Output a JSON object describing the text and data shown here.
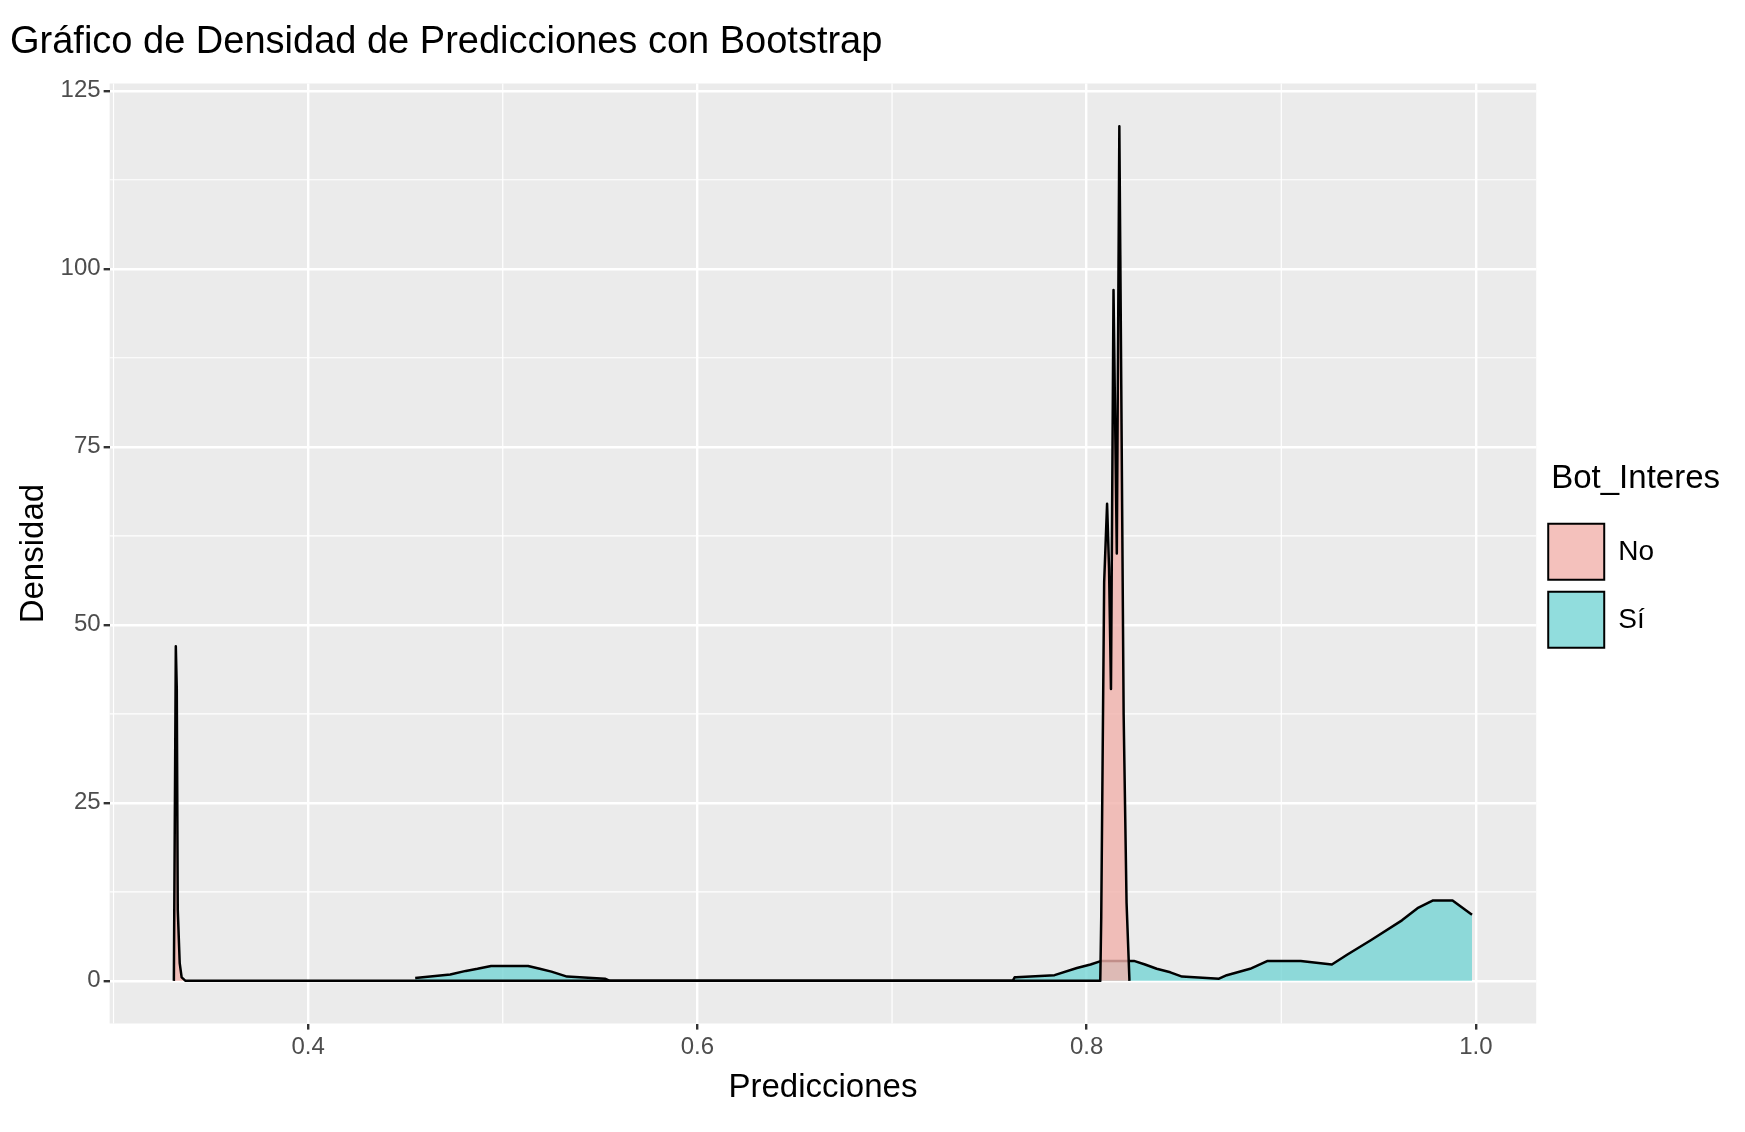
{
  "chart_data": {
    "type": "area",
    "title": "Gráfico de Densidad de Predicciones con Bootstrap",
    "xlabel": "Predicciones",
    "ylabel": "Densidad",
    "legend_title": "Bot_Interes",
    "series": [
      {
        "name": "No",
        "color": "#f1b1ab",
        "x": [
          0.331,
          0.332,
          0.3325,
          0.333,
          0.334,
          0.335,
          0.337,
          0.807,
          0.8075,
          0.809,
          0.8105,
          0.8115,
          0.8125,
          0.8138,
          0.8155,
          0.8168,
          0.8178,
          0.819,
          0.8205,
          0.822
        ],
        "values": [
          0,
          47,
          41,
          10,
          2.5,
          0.5,
          0,
          0,
          9,
          56,
          67,
          58,
          41,
          97,
          60,
          120,
          83,
          37.5,
          11,
          0
        ]
      },
      {
        "name": "Sí",
        "color": "#75d4d5",
        "x": [
          0.455,
          0.473,
          0.481,
          0.487,
          0.494,
          0.513,
          0.519,
          0.525,
          0.533,
          0.5525,
          0.555,
          0.762,
          0.763,
          0.7835,
          0.795,
          0.802,
          0.8076,
          0.8243,
          0.83,
          0.836,
          0.843,
          0.849,
          0.868,
          0.872,
          0.884,
          0.893,
          0.91,
          0.926,
          0.934,
          0.946,
          0.962,
          0.97,
          0.978,
          0.988,
          0.998
        ],
        "values": [
          0.4,
          0.9,
          1.4,
          1.7,
          2.1,
          2.1,
          1.7,
          1.3,
          0.6,
          0.3,
          0,
          0,
          0.5,
          0.8,
          1.8,
          2.3,
          2.8,
          2.8,
          2.3,
          1.7,
          1.2,
          0.6,
          0.3,
          0.8,
          1.7,
          2.8,
          2.8,
          2.3,
          3.7,
          5.7,
          8.5,
          10.2,
          11.3,
          11.3,
          9.3
        ]
      }
    ],
    "xlim": [
      0.298,
      1.031
    ],
    "xticks": [
      {
        "value": 0.4,
        "label": "0.4"
      },
      {
        "value": 0.6,
        "label": "0.6"
      },
      {
        "value": 0.8,
        "label": "0.8"
      },
      {
        "value": 1.0,
        "label": "1.0"
      }
    ],
    "ylim": [
      -6,
      126
    ],
    "yticks": [
      0,
      25,
      50,
      75,
      100,
      125
    ],
    "grid": true,
    "legend": "right"
  }
}
